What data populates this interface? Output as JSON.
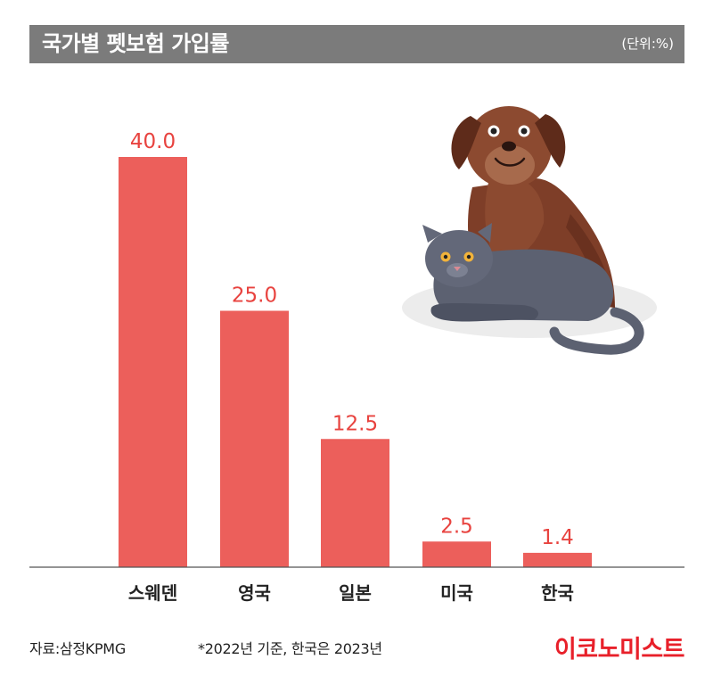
{
  "header": {
    "title": "국가별 펫보험 가입률",
    "unit": "(단위:%)"
  },
  "chart_data": {
    "type": "bar",
    "title": "국가별 펫보험 가입률",
    "unit": "(단위:%)",
    "categories": [
      "스웨덴",
      "영국",
      "일본",
      "미국",
      "한국"
    ],
    "values": [
      40.0,
      25.0,
      12.5,
      2.5,
      1.4
    ],
    "value_labels": [
      "40.0",
      "25.0",
      "12.5",
      "2.5",
      "1.4"
    ],
    "ylim": [
      0,
      40
    ],
    "grid": false,
    "bar_color": "#ec5f5b",
    "label_color": "#e8433f"
  },
  "footer": {
    "source": "자료:삼정KPMG",
    "note": "*2022년 기준, 한국은 2023년",
    "brand": "이코노미스트"
  },
  "colors": {
    "header_bg": "#7b7b7b",
    "brand": "#e8202a"
  },
  "illustration": {
    "icon": "dog-and-cat-illustration"
  }
}
